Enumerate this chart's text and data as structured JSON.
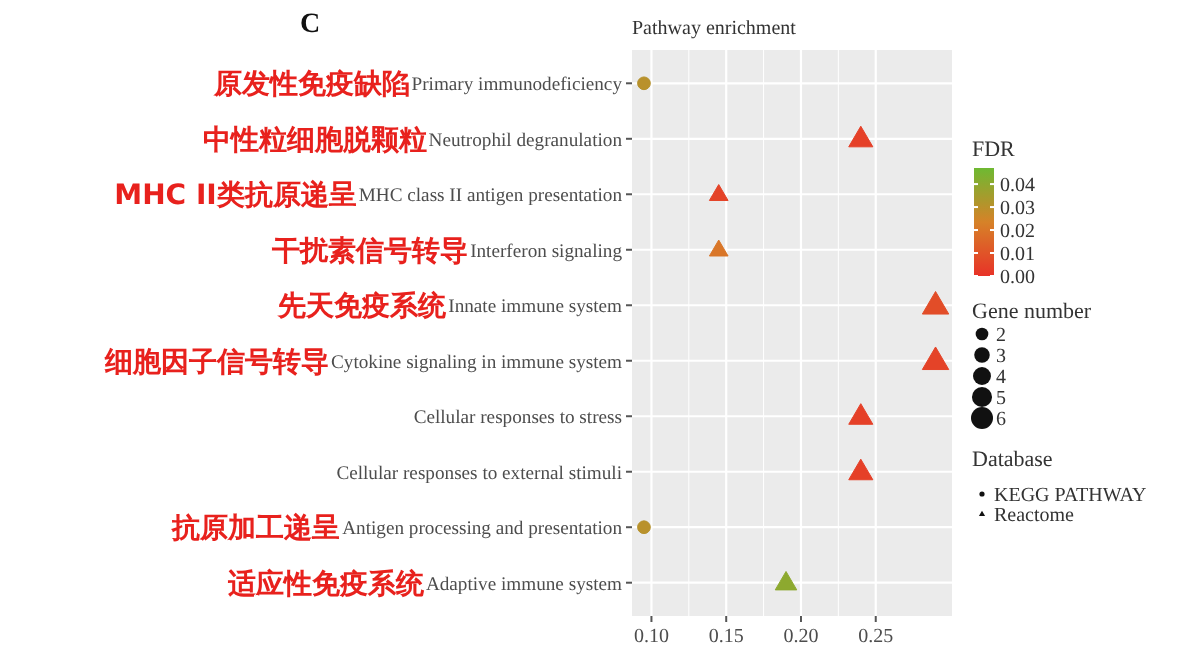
{
  "chart_data": {
    "type": "scatter",
    "orientation": "horizontal",
    "title": "Pathway enrichment",
    "clabel": "FDR",
    "legend_title": "Database",
    "categories": [
      "Primary immunodeficiency",
      "Neutrophil degranulation",
      "MHC class II antigen presentation",
      "Interferon signaling",
      "Innate immune system",
      "Cytokine signaling in immune system",
      "Cellular responses to stress",
      "Cellular responses to external stimuli",
      "Antigen processing and presentation",
      "Adaptive immune system"
    ],
    "series": [
      {
        "name": "KEGG PATHWAY",
        "marker": "circle",
        "values": [
          0.095,
          null,
          null,
          null,
          null,
          null,
          null,
          null,
          0.095,
          null
        ],
        "sizes": [
          2,
          null,
          null,
          null,
          null,
          null,
          null,
          null,
          2,
          null
        ],
        "cvalues": [
          0.03,
          null,
          null,
          null,
          null,
          null,
          null,
          null,
          0.03,
          null
        ],
        "colors": [
          "#b5912b",
          null,
          null,
          null,
          null,
          null,
          null,
          null,
          "#b5912b",
          null
        ]
      },
      {
        "name": "Reactome",
        "marker": "triangle",
        "values": [
          null,
          0.24,
          0.145,
          0.145,
          0.29,
          0.29,
          0.24,
          0.24,
          null,
          0.19
        ],
        "sizes": [
          null,
          5,
          3,
          3,
          6,
          6,
          5,
          5,
          null,
          4
        ],
        "cvalues": [
          null,
          0.004,
          0.005,
          0.02,
          0.008,
          0.005,
          0.004,
          0.004,
          null,
          0.04
        ],
        "colors": [
          null,
          "#e54028",
          "#e44328",
          "#d97628",
          "#e24d28",
          "#e44328",
          "#e54028",
          "#e54028",
          null,
          "#8da92f"
        ]
      }
    ],
    "size_legend": [
      2,
      3,
      4,
      5,
      6
    ],
    "xlim": [
      0.087,
      0.301
    ],
    "xticks": [
      {
        "value": 0.1,
        "label": "0.10"
      },
      0.15,
      {
        "value": 0.2,
        "label": "0.20"
      },
      0.25
    ],
    "clim": [
      0,
      0.047
    ],
    "cticks": [
      {
        "value": 0,
        "label": "0.00"
      },
      0.01,
      0.02,
      0.03,
      0.04
    ],
    "grid": true,
    "legend": "right",
    "annotations": [
      "C",
      "Gene number",
      "原发性免疫缺陷",
      "中性粒细胞脱颗粒",
      "MHC II类抗原递呈",
      "干扰素信号转导",
      "先天免疫系统",
      "细胞因子信号转导",
      "抗原加工递呈",
      "适应性免疫系统"
    ]
  }
}
